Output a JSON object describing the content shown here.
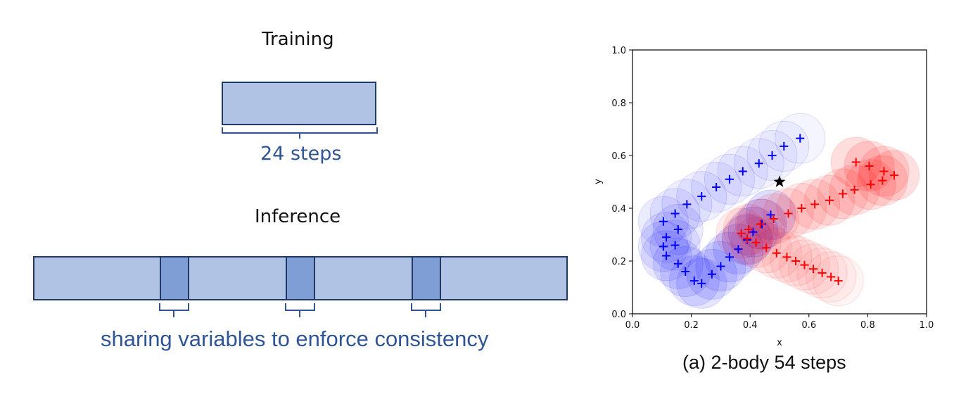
{
  "diagram": {
    "training_title": "Training",
    "training_steps_label": "24 steps",
    "inference_title": "Inference",
    "sharing_caption": "sharing variables to enforce consistency",
    "colors": {
      "block_fill": "#b0c3e5",
      "overlap_fill": "#7f9ed6",
      "border": "#1f3864",
      "label_blue": "#2f5597"
    }
  },
  "plot_caption": "(a) 2-body 54 steps",
  "chart_data": {
    "type": "scatter",
    "title": "",
    "xlabel": "x",
    "ylabel": "y",
    "xlim": [
      0.0,
      1.0
    ],
    "ylim": [
      0.0,
      1.0
    ],
    "xticks": [
      "0.0",
      "0.2",
      "0.4",
      "0.6",
      "0.8",
      "1.0"
    ],
    "yticks": [
      "0.0",
      "0.2",
      "0.4",
      "0.6",
      "0.8",
      "1.0"
    ],
    "grid": false,
    "center_marker": {
      "x": 0.5,
      "y": 0.5,
      "marker": "star",
      "color": "#000000"
    },
    "circle_radius": 0.085,
    "series": [
      {
        "color": "#0000ff",
        "marker": "plus",
        "points": [
          [
            0.57,
            0.665
          ],
          [
            0.515,
            0.635
          ],
          [
            0.475,
            0.6
          ],
          [
            0.43,
            0.57
          ],
          [
            0.375,
            0.54
          ],
          [
            0.33,
            0.51
          ],
          [
            0.285,
            0.48
          ],
          [
            0.235,
            0.445
          ],
          [
            0.185,
            0.415
          ],
          [
            0.145,
            0.38
          ],
          [
            0.105,
            0.35
          ],
          [
            0.155,
            0.32
          ],
          [
            0.115,
            0.29
          ],
          [
            0.145,
            0.26
          ],
          [
            0.105,
            0.255
          ],
          [
            0.115,
            0.22
          ],
          [
            0.155,
            0.19
          ],
          [
            0.18,
            0.16
          ],
          [
            0.21,
            0.125
          ],
          [
            0.235,
            0.115
          ],
          [
            0.27,
            0.15
          ],
          [
            0.3,
            0.18
          ],
          [
            0.33,
            0.215
          ],
          [
            0.36,
            0.245
          ],
          [
            0.39,
            0.28
          ],
          [
            0.41,
            0.31
          ],
          [
            0.44,
            0.34
          ],
          [
            0.47,
            0.375
          ]
        ]
      },
      {
        "color": "#ff0000",
        "marker": "plus",
        "points": [
          [
            0.7,
            0.125
          ],
          [
            0.675,
            0.14
          ],
          [
            0.645,
            0.155
          ],
          [
            0.615,
            0.17
          ],
          [
            0.585,
            0.185
          ],
          [
            0.555,
            0.2
          ],
          [
            0.525,
            0.215
          ],
          [
            0.49,
            0.23
          ],
          [
            0.455,
            0.25
          ],
          [
            0.42,
            0.27
          ],
          [
            0.39,
            0.285
          ],
          [
            0.37,
            0.305
          ],
          [
            0.395,
            0.32
          ],
          [
            0.435,
            0.34
          ],
          [
            0.48,
            0.36
          ],
          [
            0.53,
            0.38
          ],
          [
            0.575,
            0.4
          ],
          [
            0.62,
            0.415
          ],
          [
            0.67,
            0.43
          ],
          [
            0.715,
            0.455
          ],
          [
            0.755,
            0.47
          ],
          [
            0.81,
            0.49
          ],
          [
            0.85,
            0.505
          ],
          [
            0.89,
            0.525
          ],
          [
            0.855,
            0.54
          ],
          [
            0.805,
            0.56
          ],
          [
            0.76,
            0.575
          ]
        ]
      }
    ]
  }
}
